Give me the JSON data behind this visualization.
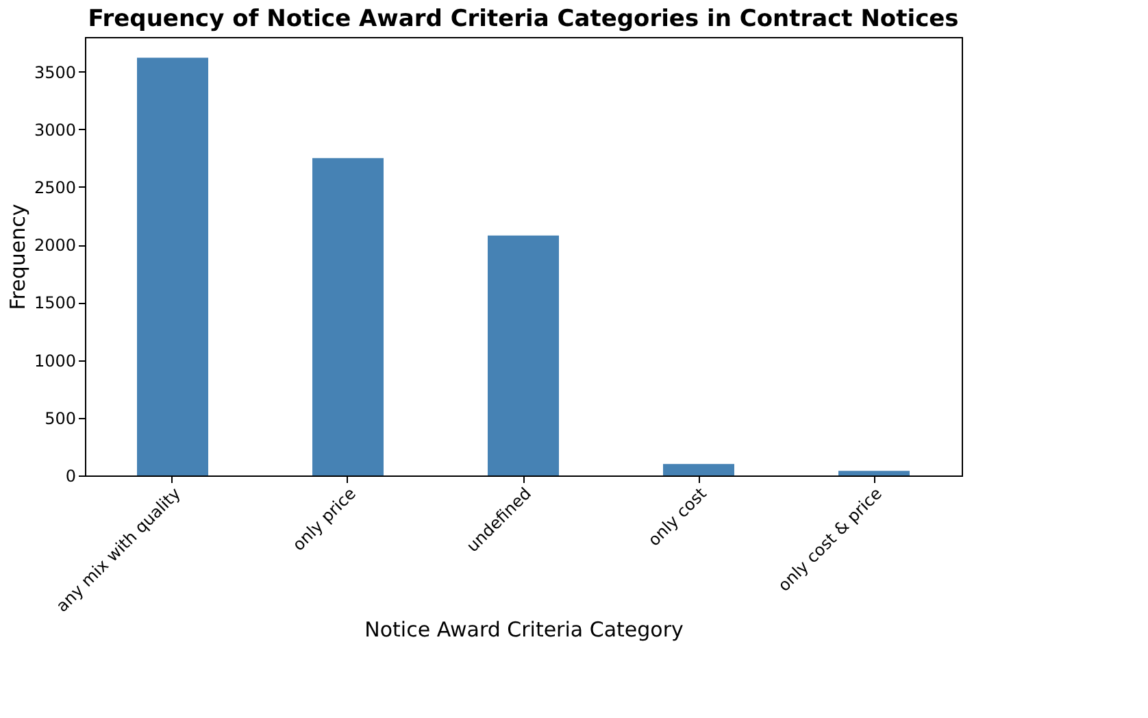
{
  "chart_data": {
    "type": "bar",
    "title": "Frequency of Notice Award Criteria Categories in Contract Notices",
    "xlabel": "Notice Award Criteria Category",
    "ylabel": "Frequency",
    "categories": [
      "any mix with quality",
      "only price",
      "undefined",
      "only cost",
      "only cost & price"
    ],
    "values": [
      3620,
      2750,
      2080,
      100,
      40
    ],
    "color": "#4682b4",
    "ylim": [
      0,
      3800
    ],
    "yticks": [
      0,
      500,
      1000,
      1500,
      2000,
      2500,
      3000,
      3500
    ],
    "grid": false
  }
}
